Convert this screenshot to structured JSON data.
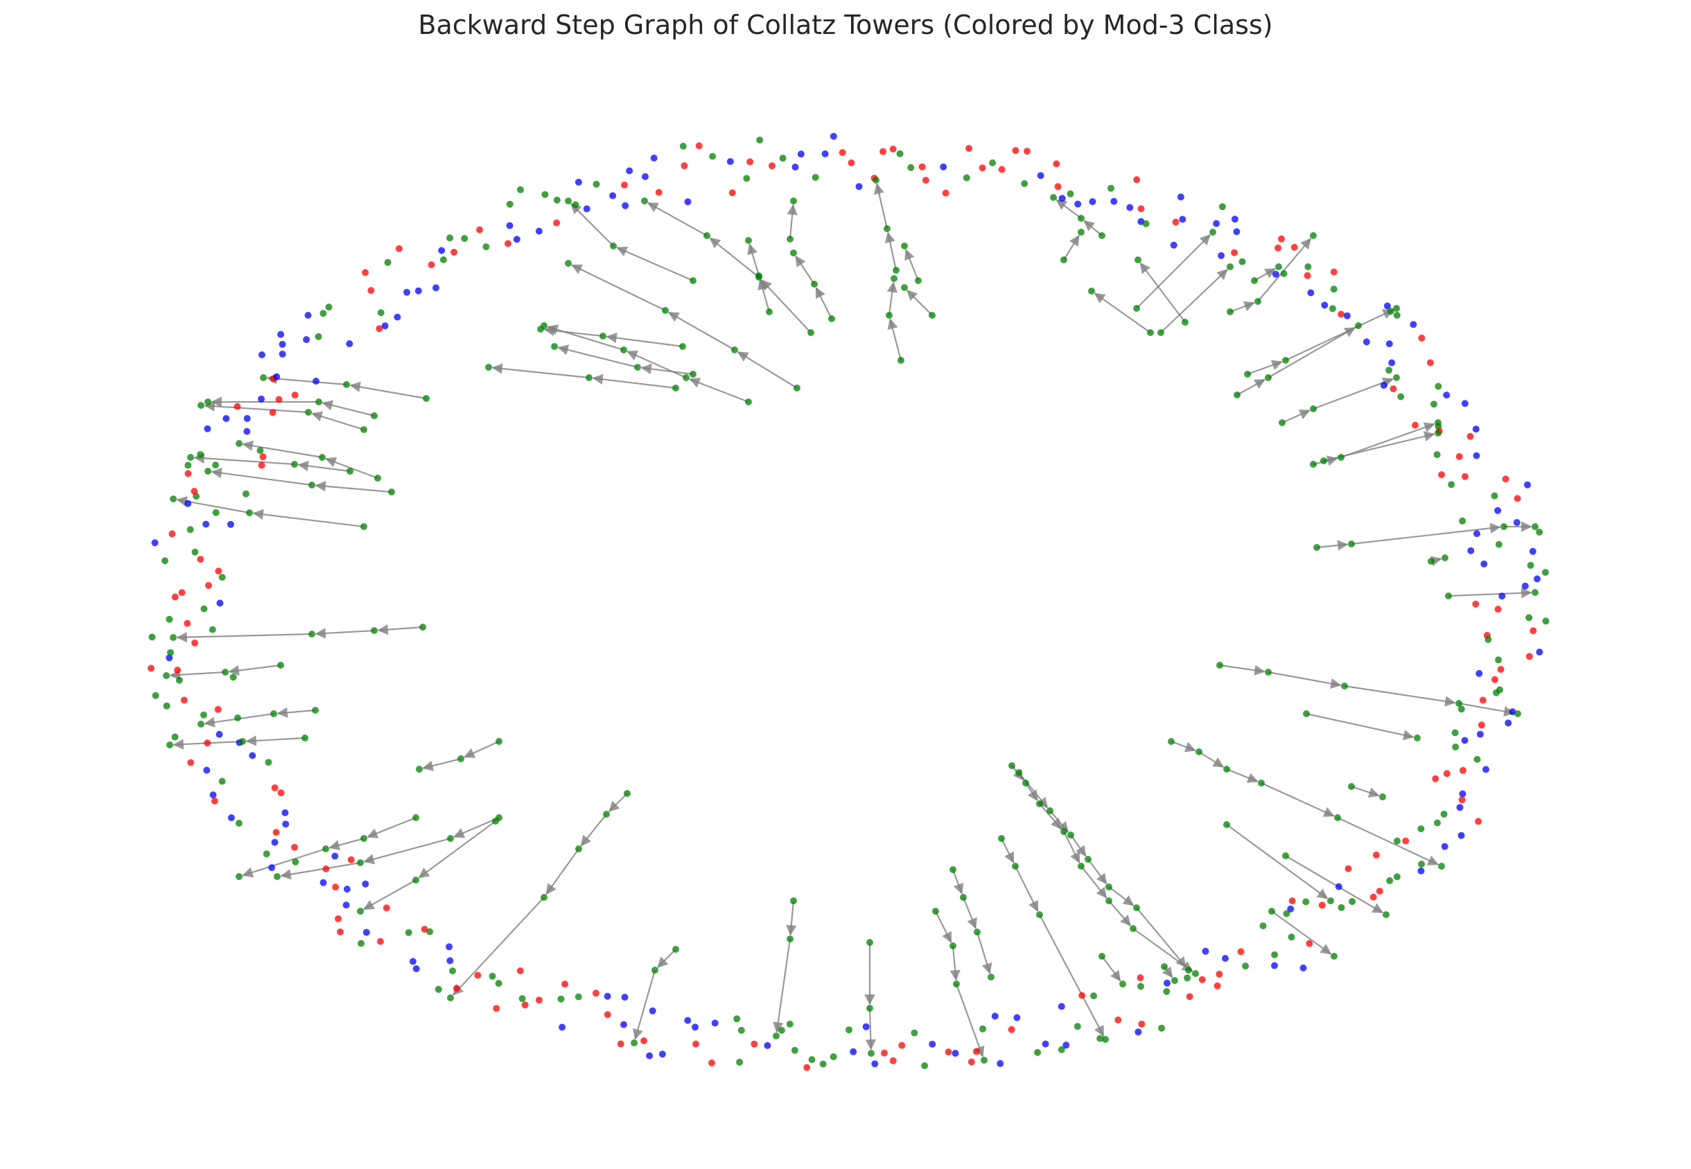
{
  "title": "Backward Step Graph of Collatz Towers (Colored by Mod-3 Class)",
  "colors": {
    "mod0": "#0000ff",
    "mod1": "#ff0000",
    "mod2": "#008000",
    "edge": "#808080"
  },
  "ring_nodes": {
    "count": 420,
    "pattern": "mixed mod-3 classes (blue, red, green)"
  }
}
